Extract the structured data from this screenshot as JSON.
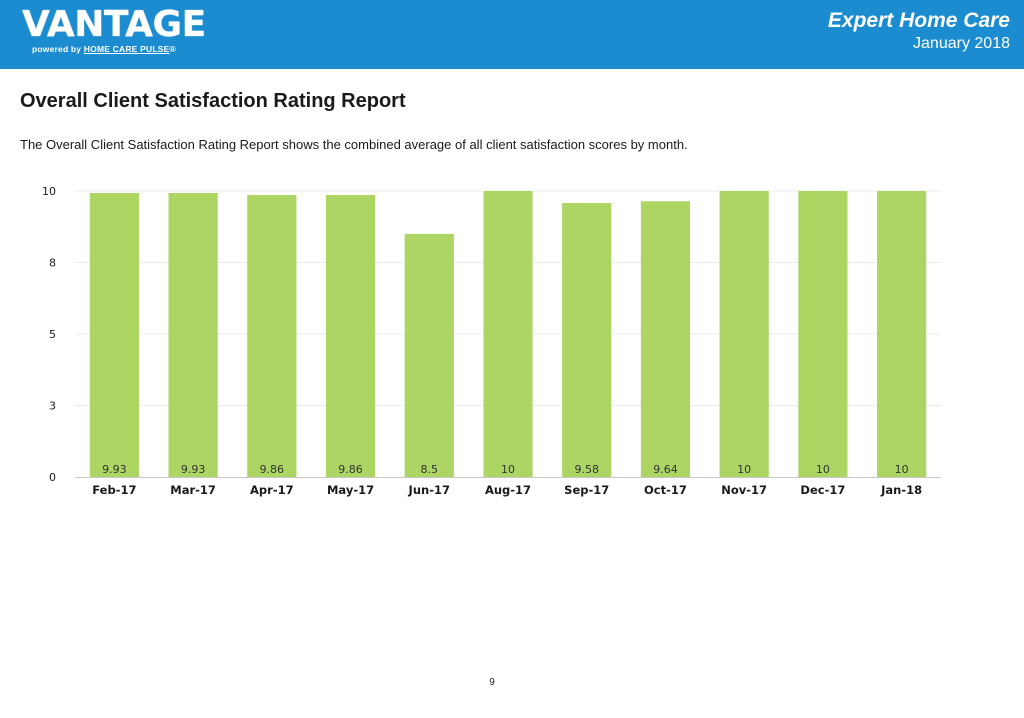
{
  "header": {
    "logo_text": "VANTAGE",
    "logo_powered_by": "powered by",
    "logo_brand": "HOME CARE PULSE",
    "logo_mark": "®",
    "company_name": "Expert Home Care",
    "report_date": "January 2018",
    "background_color": "#1b8ccf"
  },
  "report": {
    "title": "Overall Client Satisfaction Rating Report",
    "description": "The Overall Client Satisfaction Rating Report shows the combined average of all client satisfaction scores by month."
  },
  "chart_data": {
    "type": "bar",
    "categories": [
      "Feb-17",
      "Mar-17",
      "Apr-17",
      "May-17",
      "Jun-17",
      "Aug-17",
      "Sep-17",
      "Oct-17",
      "Nov-17",
      "Dec-17",
      "Jan-18"
    ],
    "values": [
      9.93,
      9.93,
      9.86,
      9.86,
      8.5,
      10,
      9.58,
      9.64,
      10,
      10,
      10
    ],
    "value_labels": [
      "9.93",
      "9.93",
      "9.86",
      "9.86",
      "8.5",
      "10",
      "9.58",
      "9.64",
      "10",
      "10",
      "10"
    ],
    "y_ticks": [
      0,
      2.5,
      5,
      7.5,
      10
    ],
    "y_tick_labels": [
      "0",
      "3",
      "5",
      "8",
      "10"
    ],
    "ylim": [
      0,
      10
    ],
    "grid": true,
    "bar_color": "#acd563"
  },
  "footer": {
    "page_number": "9"
  }
}
